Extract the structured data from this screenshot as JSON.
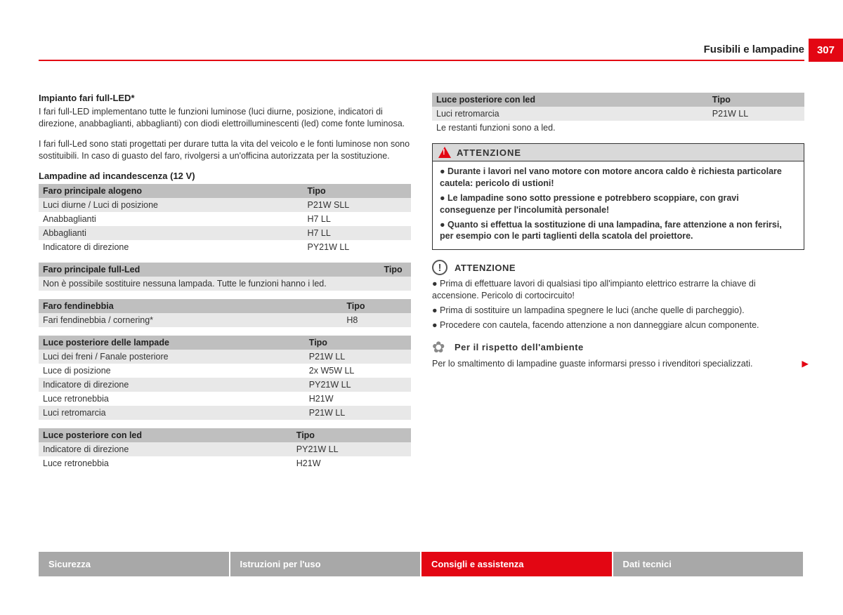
{
  "header": {
    "section": "Fusibili e lampadine",
    "page": "307"
  },
  "left": {
    "h1": "Impianto fari full-LED*",
    "p1": "I fari full-LED implementano tutte le funzioni luminose (luci diurne, posizione, indicatori di direzione, anabbaglianti, abbaglianti) con diodi elettroilluminescenti (led) come fonte luminosa.",
    "p2": "I fari full-Led sono stati progettati per durare tutta la vita del veicolo e le fonti luminose non sono sostituibili. In caso di guasto del faro, rivolgersi a un'officina autorizzata per la sostituzione.",
    "h2": "Lampadine ad incandescenza (12 V)",
    "tables": [
      {
        "head": [
          "Faro principale alogeno",
          "Tipo"
        ],
        "rows": [
          [
            "Luci diurne / Luci di posizione",
            "P21W SLL"
          ],
          [
            "Anabbaglianti",
            "H7 LL"
          ],
          [
            "Abbaglianti",
            "H7 LL"
          ],
          [
            "Indicatore di direzione",
            "PY21W LL"
          ]
        ]
      },
      {
        "head": [
          "Faro principale full-Led",
          "Tipo"
        ],
        "rows": [
          [
            "Non è possibile sostituire nessuna lampada. Tutte le funzioni hanno i led.",
            ""
          ]
        ]
      },
      {
        "head": [
          "Faro fendinebbia",
          "Tipo"
        ],
        "rows": [
          [
            "Fari fendinebbia / cornering*",
            "H8"
          ]
        ]
      },
      {
        "head": [
          "Luce posteriore delle lampade",
          "Tipo"
        ],
        "rows": [
          [
            "Luci dei freni / Fanale posteriore",
            "P21W LL"
          ],
          [
            "Luce di posizione",
            "2x W5W LL"
          ],
          [
            "Indicatore di direzione",
            "PY21W LL"
          ],
          [
            "Luce retronebbia",
            "H21W"
          ],
          [
            "Luci retromarcia",
            "P21W LL"
          ]
        ]
      },
      {
        "head": [
          "Luce posteriore con led",
          "Tipo"
        ],
        "rows": [
          [
            "Indicatore di direzione",
            "PY21W LL"
          ],
          [
            "Luce retronebbia",
            "H21W"
          ]
        ]
      }
    ]
  },
  "right": {
    "table": {
      "head": [
        "Luce posteriore con led",
        "Tipo"
      ],
      "rows": [
        [
          "Luci retromarcia",
          "P21W LL"
        ],
        [
          "Le restanti funzioni sono a led.",
          ""
        ]
      ]
    },
    "warn": {
      "title": "ATTENZIONE",
      "items": [
        "Durante i lavori nel vano motore con motore ancora caldo è richiesta particolare cautela: pericolo di ustioni!",
        "Le lampadine sono sotto pressione e potrebbero scoppiare, con gravi conseguenze per l'incolumità personale!",
        "Quanto si effettua la sostituzione di una lampadina, fare attenzione a non ferirsi, per esempio con le parti taglienti della scatola del proiettore."
      ]
    },
    "note": {
      "title": "ATTENZIONE",
      "items": [
        "Prima di effettuare lavori di qualsiasi tipo all'impianto elettrico estrarre la chiave di accensione. Pericolo di cortocircuito!",
        "Prima di sostituire un lampadina spegnere le luci (anche quelle di parcheggio).",
        "Procedere con cautela, facendo attenzione a non danneggiare alcun componente."
      ]
    },
    "env": {
      "title": "Per il rispetto dell'ambiente",
      "text": "Per lo smaltimento di lampadine guaste informarsi presso i rivenditori specializzati."
    }
  },
  "footer": {
    "tabs": [
      "Sicurezza",
      "Istruzioni per l'uso",
      "Consigli e assistenza",
      "Dati tecnici"
    ],
    "active": 2
  },
  "colors": {
    "accent": "#e30613",
    "grey_head": "#bfbfbf",
    "row_odd": "#e8e8e8"
  }
}
